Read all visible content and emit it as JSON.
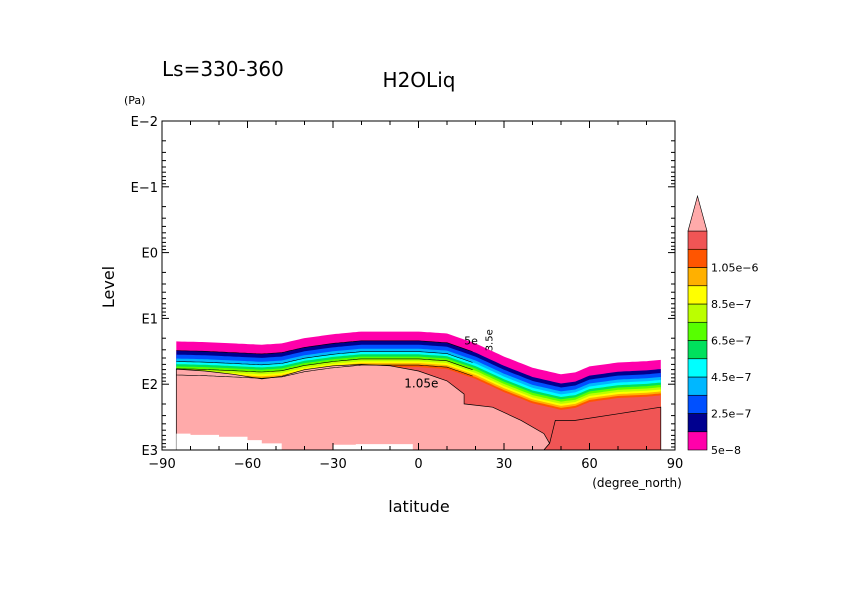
{
  "chart_data": {
    "type": "contour",
    "title": "H2OLiq",
    "subtitle": "Ls=330-360",
    "xlabel": "latitude",
    "xunits": "(degree_north)",
    "ylabel": "Level",
    "yunits": "(Pa)",
    "xlim": [
      -90,
      90
    ],
    "xticks": [
      -90,
      -60,
      -30,
      0,
      30,
      60,
      90
    ],
    "xtick_labels": [
      "−90",
      "−60",
      "−30",
      "0",
      "30",
      "60",
      "90"
    ],
    "ylim_log10": [
      -2,
      3
    ],
    "yticks_log10": [
      -2,
      -1,
      0,
      1,
      2,
      3
    ],
    "ytick_labels": [
      "E−2",
      "E−1",
      "E0",
      "E1",
      "E2",
      "E3"
    ],
    "contour_labels": [
      "1.05e",
      "5e",
      "3.5e"
    ],
    "colorbar": {
      "labels": [
        "1.05e−6",
        "8.5e−7",
        "6.5e−7",
        "4.5e−7",
        "2.5e−7",
        "5e−8"
      ],
      "levels": [
        5e-08,
        1.5e-07,
        2.5e-07,
        3.5e-07,
        4.5e-07,
        5.5e-07,
        6.5e-07,
        7.5e-07,
        8.5e-07,
        9.5e-07,
        1.05e-06
      ],
      "colors": [
        "#ff00aa",
        "#00008f",
        "#0050ff",
        "#00b7ff",
        "#00ffff",
        "#00e05c",
        "#57ff00",
        "#bbff00",
        "#ffff00",
        "#ffb000",
        "#ff5500",
        "#f05555",
        "#ffaaaa"
      ]
    },
    "band_top_log10": {
      "lat": [
        -85,
        -75,
        -65,
        -55,
        -48,
        -40,
        -30,
        -20,
        -10,
        0,
        10,
        20,
        30,
        40,
        50,
        55,
        60,
        70,
        80,
        85
      ],
      "value": [
        1.35,
        1.36,
        1.38,
        1.4,
        1.38,
        1.3,
        1.24,
        1.2,
        1.2,
        1.2,
        1.23,
        1.38,
        1.58,
        1.75,
        1.85,
        1.82,
        1.73,
        1.67,
        1.65,
        1.63
      ]
    },
    "cloud_top_log10": {
      "lat": [
        -85,
        -75,
        -65,
        -55,
        -48,
        -40,
        -30,
        -20,
        -10,
        0,
        10,
        16
      ],
      "value": [
        1.77,
        1.8,
        1.85,
        1.92,
        1.88,
        1.78,
        1.72,
        1.7,
        1.72,
        1.8,
        1.95,
        2.15
      ]
    }
  }
}
